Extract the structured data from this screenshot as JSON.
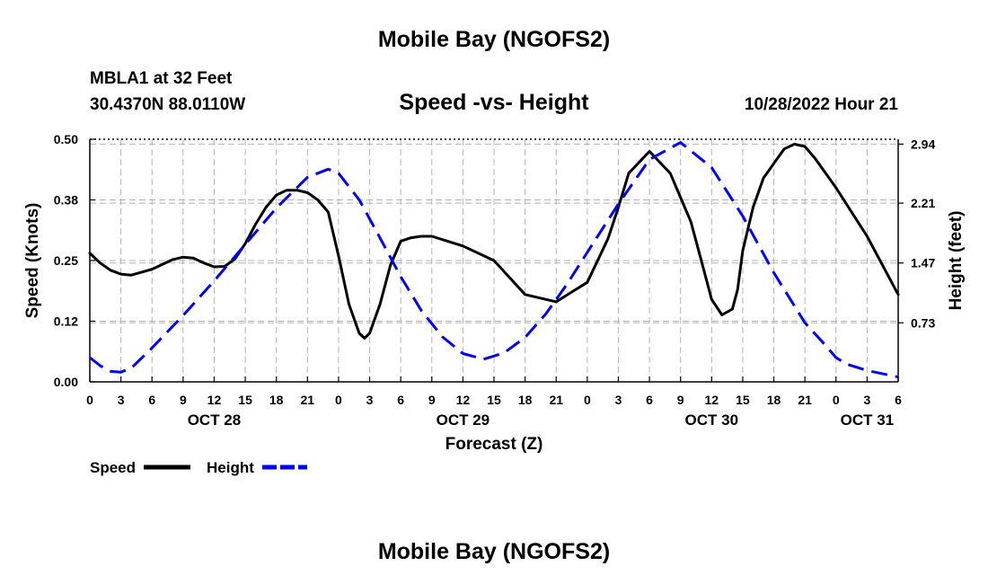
{
  "page": {
    "title": "Mobile Bay (NGOFS2)",
    "bottom_title": "Mobile Bay (NGOFS2)",
    "station": "MBLA1 at 32 Feet",
    "coords": "30.4370N  88.0110W",
    "subtitle": "Speed -vs- Height",
    "datetime": "10/28/2022 Hour 21"
  },
  "chart_data": {
    "type": "line",
    "xlabel": "Forecast (Z)",
    "ylabel": "Speed (Knots)",
    "y2label": "Height (feet)",
    "x_unit": "hours (Z) from 00Z Oct 28, 2022",
    "xlim": [
      0,
      78
    ],
    "x_ticks": [
      0,
      3,
      6,
      9,
      12,
      15,
      18,
      21,
      24,
      27,
      30,
      33,
      36,
      39,
      42,
      45,
      48,
      51,
      54,
      57,
      60,
      63,
      66,
      69,
      72,
      75,
      78
    ],
    "x_tick_labels": [
      "0",
      "3",
      "6",
      "9",
      "12",
      "15",
      "18",
      "21",
      "0",
      "3",
      "6",
      "9",
      "12",
      "15",
      "18",
      "21",
      "0",
      "3",
      "6",
      "9",
      "12",
      "15",
      "18",
      "21",
      "0",
      "3",
      "6"
    ],
    "date_labels": [
      {
        "x": 12,
        "label": "OCT 28"
      },
      {
        "x": 36,
        "label": "OCT 29"
      },
      {
        "x": 60,
        "label": "OCT 30"
      },
      {
        "x": 75,
        "label": "OCT 31"
      }
    ],
    "ylim": [
      0,
      0.5
    ],
    "y_ticks": [
      0,
      0.125,
      0.25,
      0.375,
      0.5
    ],
    "y_tick_labels": [
      "0.00",
      "0.12",
      "0.25",
      "0.38",
      "0.50"
    ],
    "y2lim": [
      0,
      3.0
    ],
    "y2_ticks": [
      0.73,
      1.47,
      2.21,
      2.94
    ],
    "y2_tick_labels": [
      "0.73",
      "1.47",
      "2.21",
      "2.94"
    ],
    "grid": true,
    "legend": "bottom-left",
    "series": [
      {
        "name": "Speed",
        "axis": "left",
        "color": "#000000",
        "style": "solid",
        "x": [
          0,
          1,
          2,
          3,
          4,
          6,
          8,
          9,
          10,
          11,
          12,
          13,
          14,
          15,
          16,
          17,
          18,
          19,
          20,
          21,
          22,
          23,
          24,
          25,
          26,
          26.5,
          27,
          28,
          29,
          30,
          31,
          32,
          33,
          36,
          39,
          42,
          45,
          48,
          49,
          50,
          51,
          52,
          54,
          56,
          57,
          58,
          59,
          60,
          61,
          62,
          62.5,
          63,
          64,
          65,
          66,
          67,
          68,
          69,
          70,
          72,
          75,
          78
        ],
        "values": [
          0.265,
          0.245,
          0.23,
          0.222,
          0.22,
          0.232,
          0.252,
          0.257,
          0.255,
          0.245,
          0.237,
          0.238,
          0.253,
          0.285,
          0.325,
          0.36,
          0.385,
          0.395,
          0.395,
          0.39,
          0.375,
          0.35,
          0.26,
          0.16,
          0.1,
          0.09,
          0.1,
          0.16,
          0.24,
          0.29,
          0.297,
          0.3,
          0.3,
          0.28,
          0.25,
          0.18,
          0.165,
          0.205,
          0.25,
          0.295,
          0.36,
          0.43,
          0.475,
          0.43,
          0.38,
          0.33,
          0.25,
          0.17,
          0.138,
          0.15,
          0.19,
          0.27,
          0.36,
          0.42,
          0.45,
          0.48,
          0.49,
          0.485,
          0.46,
          0.4,
          0.3,
          0.18
        ]
      },
      {
        "name": "Height",
        "axis": "right",
        "color": "#0000ff",
        "style": "dashed",
        "x": [
          0,
          1,
          2,
          3,
          4,
          6,
          9,
          12,
          15,
          18,
          21,
          23,
          24,
          26,
          28,
          30,
          32,
          34,
          36,
          38,
          40,
          42,
          44,
          46,
          48,
          51,
          54,
          57,
          60,
          63,
          66,
          69,
          71,
          72,
          73,
          75,
          78
        ],
        "values": [
          0.3,
          0.2,
          0.13,
          0.12,
          0.17,
          0.42,
          0.82,
          1.25,
          1.7,
          2.15,
          2.53,
          2.63,
          2.58,
          2.25,
          1.78,
          1.3,
          0.88,
          0.56,
          0.35,
          0.28,
          0.36,
          0.55,
          0.84,
          1.2,
          1.6,
          2.2,
          2.75,
          2.96,
          2.65,
          2.05,
          1.35,
          0.73,
          0.45,
          0.3,
          0.22,
          0.14,
          0.06
        ]
      }
    ]
  }
}
